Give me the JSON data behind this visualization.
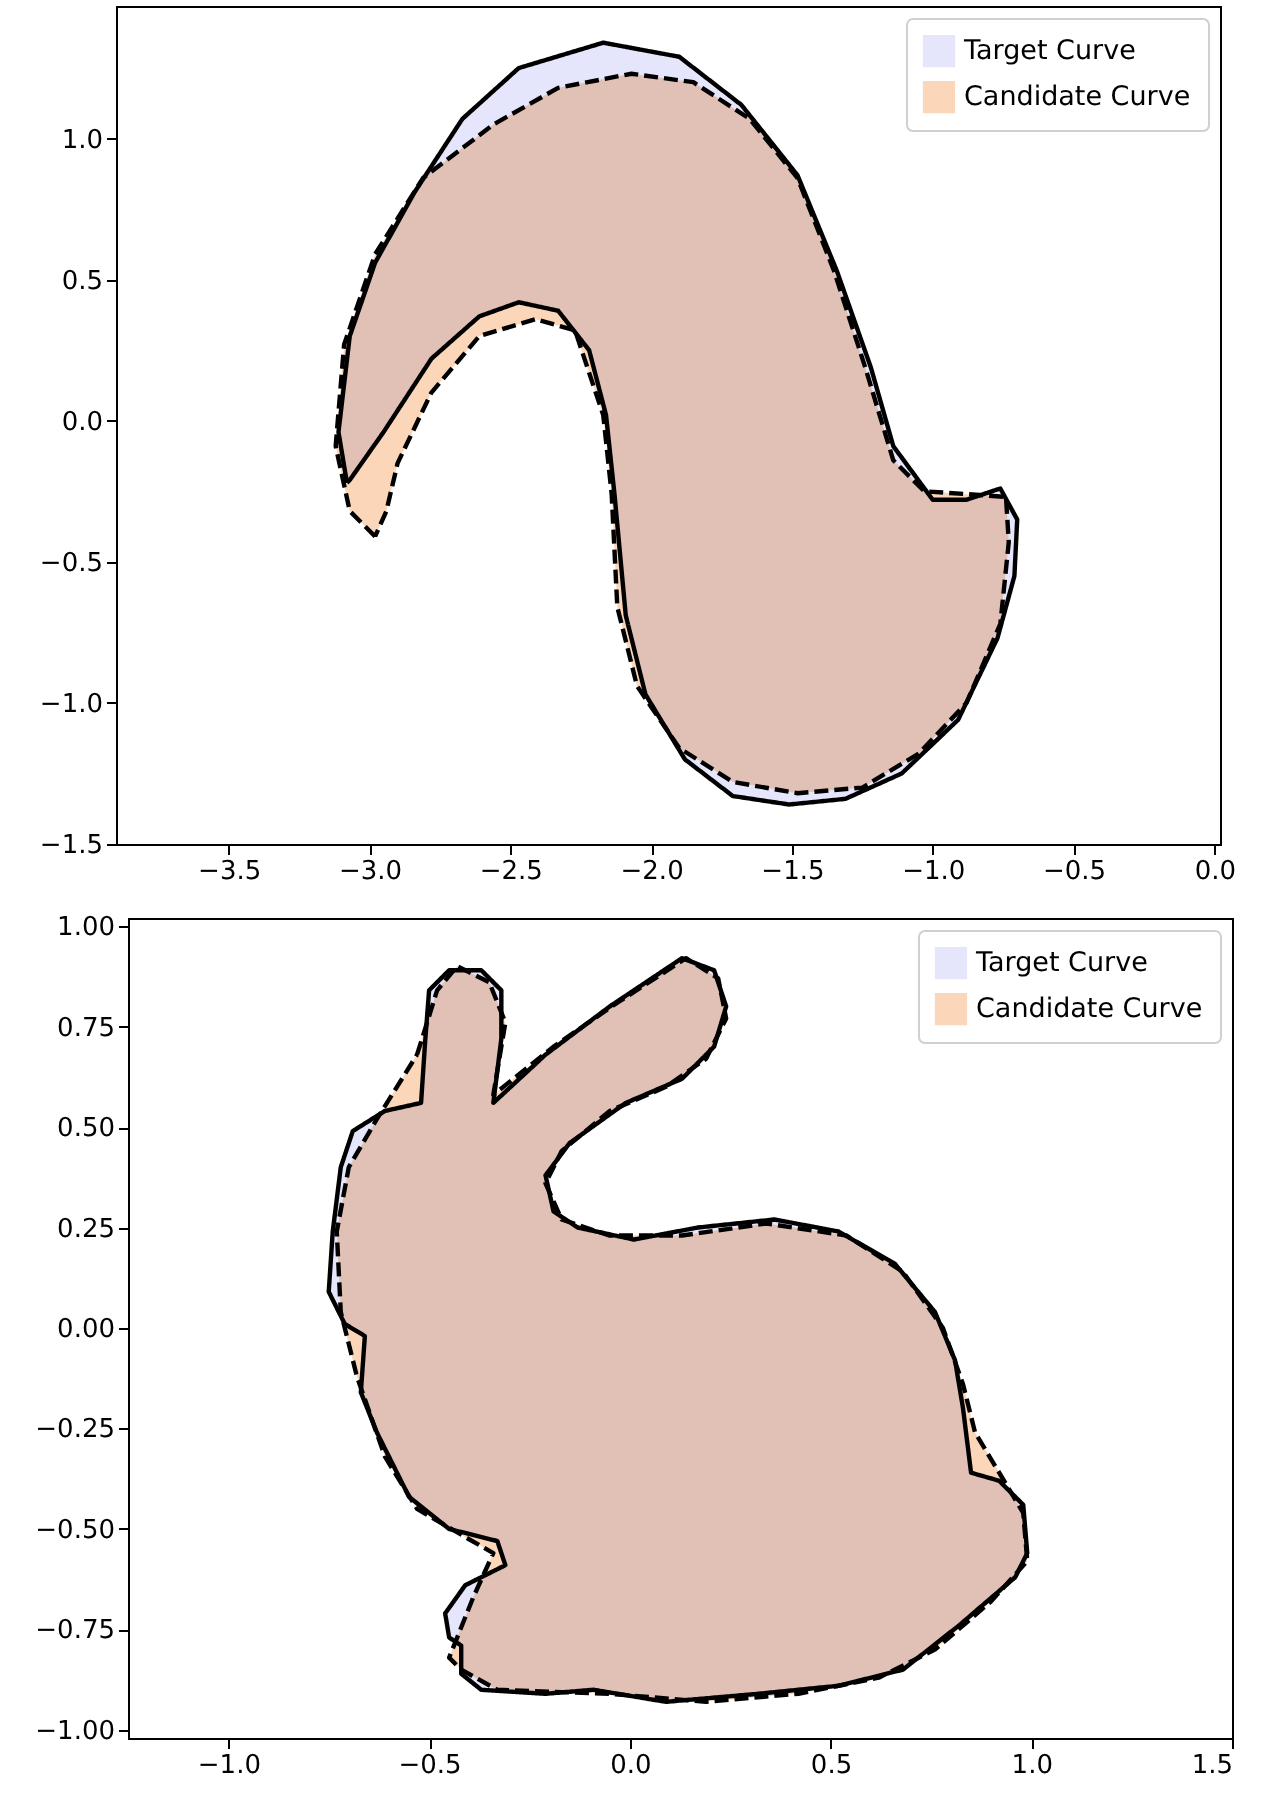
{
  "chart_data": [
    {
      "type": "area",
      "legend": "top right",
      "grid": false,
      "xlim": [
        -3.9,
        0.02
      ],
      "ylim": [
        -1.5,
        1.47
      ],
      "xticks": [
        {
          "value": -3.5,
          "label": "−3.5"
        },
        {
          "value": -3.0,
          "label": "−3.0"
        },
        {
          "value": -2.5,
          "label": "−2.5"
        },
        {
          "value": -2.0,
          "label": "−2.0"
        },
        {
          "value": -1.5,
          "label": "−1.5"
        },
        {
          "value": -1.0,
          "label": "−1.0"
        },
        {
          "value": -0.5,
          "label": "−0.5"
        },
        {
          "value": 0,
          "label": "0.0"
        }
      ],
      "yticks": [
        {
          "value": -1.5,
          "label": "−1.5"
        },
        {
          "value": -1.0,
          "label": "−1.0"
        },
        {
          "value": -0.5,
          "label": "−0.5"
        },
        {
          "value": 0,
          "label": "0.0"
        },
        {
          "value": 0.5,
          "label": "0.5"
        },
        {
          "value": 1.0,
          "label": "1.0"
        }
      ],
      "series": [
        {
          "name": "Target Curve",
          "color": "#e5e5fc",
          "line_style": "solid",
          "x": [
            -3.08,
            -3.11,
            -3.07,
            -2.98,
            -2.84,
            -2.67,
            -2.47,
            -2.17,
            -1.9,
            -1.68,
            -1.48,
            -1.34,
            -1.22,
            -1.14,
            -1.0,
            -0.88,
            -0.76,
            -0.7,
            -0.71,
            -0.77,
            -0.91,
            -1.11,
            -1.31,
            -1.51,
            -1.71,
            -1.88,
            -2.02,
            -2.09,
            -2.13,
            -2.16,
            -2.22,
            -2.33,
            -2.47,
            -2.61,
            -2.78,
            -2.95,
            -3.07
          ],
          "values": [
            -0.22,
            -0.04,
            0.3,
            0.56,
            0.81,
            1.07,
            1.25,
            1.34,
            1.29,
            1.12,
            0.87,
            0.53,
            0.19,
            -0.09,
            -0.28,
            -0.28,
            -0.24,
            -0.35,
            -0.55,
            -0.77,
            -1.06,
            -1.25,
            -1.34,
            -1.36,
            -1.33,
            -1.2,
            -0.97,
            -0.69,
            -0.26,
            0.02,
            0.25,
            0.39,
            0.42,
            0.37,
            0.22,
            -0.04,
            -0.21
          ]
        },
        {
          "name": "Candidate Curve",
          "color": "#fbd6b8",
          "line_style": "dashed",
          "x": [
            -2.98,
            -3.07,
            -3.12,
            -3.09,
            -2.98,
            -2.81,
            -2.56,
            -2.33,
            -2.07,
            -1.85,
            -1.65,
            -1.48,
            -1.35,
            -1.24,
            -1.14,
            -1.03,
            -0.88,
            -0.74,
            -0.73,
            -0.76,
            -0.88,
            -1.05,
            -1.25,
            -1.48,
            -1.71,
            -1.9,
            -2.05,
            -2.12,
            -2.14,
            -2.17,
            -2.27,
            -2.41,
            -2.61,
            -2.78,
            -2.9,
            -2.94
          ],
          "values": [
            -0.41,
            -0.32,
            -0.09,
            0.27,
            0.59,
            0.86,
            1.05,
            1.18,
            1.23,
            1.2,
            1.07,
            0.86,
            0.53,
            0.19,
            -0.14,
            -0.25,
            -0.26,
            -0.27,
            -0.43,
            -0.72,
            -1.0,
            -1.18,
            -1.3,
            -1.32,
            -1.28,
            -1.16,
            -0.94,
            -0.66,
            -0.26,
            0.02,
            0.32,
            0.36,
            0.3,
            0.1,
            -0.15,
            -0.32
          ]
        }
      ]
    },
    {
      "type": "area",
      "legend": "top right",
      "grid": false,
      "xlim": [
        -1.25,
        1.5
      ],
      "ylim": [
        -1.02,
        1.02
      ],
      "xticks": [
        {
          "value": -1.0,
          "label": "−1.0"
        },
        {
          "value": -0.5,
          "label": "−0.5"
        },
        {
          "value": 0,
          "label": "0.0"
        },
        {
          "value": 0.5,
          "label": "0.5"
        },
        {
          "value": 1.0,
          "label": "1.0"
        },
        {
          "value": 1.5,
          "label": "1.5"
        }
      ],
      "yticks": [
        {
          "value": -1.0,
          "label": "−1.00"
        },
        {
          "value": -0.75,
          "label": "−0.75"
        },
        {
          "value": -0.5,
          "label": "−0.50"
        },
        {
          "value": -0.25,
          "label": "−0.25"
        },
        {
          "value": 0,
          "label": "0.00"
        },
        {
          "value": 0.25,
          "label": "0.25"
        },
        {
          "value": 0.5,
          "label": "0.50"
        },
        {
          "value": 0.75,
          "label": "0.75"
        },
        {
          "value": 1.0,
          "label": "1.00"
        }
      ],
      "series": [
        {
          "name": "Target Curve",
          "color": "#e5e5fc",
          "line_style": "solid",
          "x": [
            -0.51,
            -0.5,
            -0.45,
            -0.37,
            -0.32,
            -0.32,
            -0.34,
            -0.21,
            -0.05,
            0.13,
            0.21,
            0.24,
            0.21,
            0.13,
            -0.01,
            -0.15,
            -0.21,
            -0.19,
            -0.13,
            0.01,
            0.17,
            0.36,
            0.52,
            0.66,
            0.76,
            0.81,
            0.83,
            0.85,
            0.92,
            0.98,
            0.99,
            0.96,
            0.82,
            0.68,
            0.52,
            0.32,
            0.09,
            -0.09,
            -0.21,
            -0.37,
            -0.42,
            -0.42,
            -0.45,
            -0.46,
            -0.41,
            -0.31,
            -0.33,
            -0.45,
            -0.55,
            -0.63,
            -0.67,
            -0.66,
            -0.71,
            -0.75,
            -0.74,
            -0.72,
            -0.69,
            -0.61,
            -0.52
          ],
          "values": [
            0.71,
            0.84,
            0.89,
            0.89,
            0.84,
            0.72,
            0.56,
            0.68,
            0.8,
            0.92,
            0.89,
            0.8,
            0.7,
            0.62,
            0.56,
            0.46,
            0.38,
            0.29,
            0.25,
            0.22,
            0.25,
            0.27,
            0.24,
            0.16,
            0.04,
            -0.08,
            -0.2,
            -0.36,
            -0.38,
            -0.44,
            -0.56,
            -0.62,
            -0.74,
            -0.85,
            -0.89,
            -0.91,
            -0.93,
            -0.9,
            -0.91,
            -0.9,
            -0.86,
            -0.79,
            -0.77,
            -0.71,
            -0.64,
            -0.59,
            -0.53,
            -0.5,
            -0.42,
            -0.26,
            -0.16,
            -0.02,
            0.01,
            0.09,
            0.24,
            0.4,
            0.49,
            0.54,
            0.56
          ]
        },
        {
          "name": "Candidate Curve",
          "color": "#fbd6b8",
          "line_style": "dashed",
          "x": [
            -0.53,
            -0.48,
            -0.43,
            -0.35,
            -0.31,
            -0.34,
            -0.19,
            -0.03,
            0.14,
            0.22,
            0.24,
            0.19,
            0.09,
            -0.05,
            -0.17,
            -0.21,
            -0.17,
            -0.05,
            0.13,
            0.34,
            0.54,
            0.68,
            0.78,
            0.83,
            0.86,
            0.92,
            0.98,
            0.99,
            0.9,
            0.76,
            0.62,
            0.42,
            0.19,
            -0.05,
            -0.33,
            -0.42,
            -0.45,
            -0.39,
            -0.34,
            -0.41,
            -0.53,
            -0.61,
            -0.68,
            -0.72,
            -0.73,
            -0.7,
            -0.63
          ],
          "values": [
            0.68,
            0.84,
            0.9,
            0.86,
            0.76,
            0.58,
            0.7,
            0.81,
            0.92,
            0.87,
            0.77,
            0.67,
            0.6,
            0.54,
            0.44,
            0.36,
            0.27,
            0.23,
            0.23,
            0.26,
            0.23,
            0.14,
            0.0,
            -0.14,
            -0.26,
            -0.36,
            -0.46,
            -0.58,
            -0.68,
            -0.8,
            -0.87,
            -0.91,
            -0.93,
            -0.91,
            -0.9,
            -0.85,
            -0.82,
            -0.67,
            -0.56,
            -0.52,
            -0.45,
            -0.32,
            -0.12,
            0.04,
            0.24,
            0.4,
            0.52
          ]
        }
      ]
    }
  ]
}
